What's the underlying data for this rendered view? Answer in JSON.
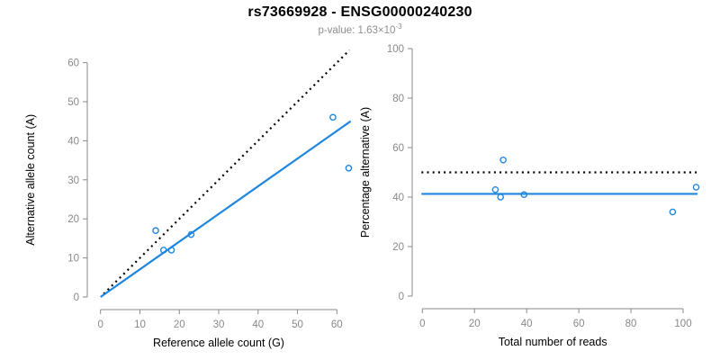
{
  "header": {
    "title": "rs73669928 - ENSG00000240230",
    "subtitle_prefix": "p-value: 1.63×10",
    "subtitle_exponent": "-3"
  },
  "colors": {
    "accent": "#1f86e0",
    "axis": "#8a8a8a",
    "reference": "#000000"
  },
  "chart_data": [
    {
      "type": "scatter",
      "panel": "left",
      "xlabel": "Reference allele count (G)",
      "ylabel": "Alternative allele count (A)",
      "xlim": [
        0,
        63.5
      ],
      "ylim": [
        0,
        63.5
      ],
      "xticks": [
        0,
        10,
        20,
        30,
        40,
        50,
        60
      ],
      "yticks": [
        0,
        10,
        20,
        30,
        40,
        50,
        60
      ],
      "points": [
        [
          14,
          17
        ],
        [
          16,
          12
        ],
        [
          18,
          12
        ],
        [
          23,
          16
        ],
        [
          59,
          46
        ],
        [
          63,
          33
        ]
      ],
      "lines": [
        {
          "name": "identity-line",
          "style": "dotted",
          "color": "#000000",
          "from": [
            0.8,
            0.8
          ],
          "to": [
            63.2,
            63.2
          ]
        },
        {
          "name": "regression-line",
          "style": "solid",
          "color": "#1f86e0",
          "from": [
            0,
            0
          ],
          "to": [
            63.5,
            45.0
          ]
        }
      ],
      "grid": false,
      "legend": null
    },
    {
      "type": "scatter",
      "panel": "right",
      "xlabel": "Total number of reads",
      "ylabel": "Percentage alternative (A)",
      "xlim": [
        0,
        105.5
      ],
      "ylim": [
        0,
        100
      ],
      "xticks": [
        0,
        20,
        40,
        60,
        80,
        100
      ],
      "yticks": [
        0,
        20,
        40,
        60,
        80,
        100
      ],
      "points": [
        [
          31,
          55
        ],
        [
          28,
          43
        ],
        [
          30,
          40
        ],
        [
          39,
          41
        ],
        [
          96,
          34
        ],
        [
          105,
          44
        ]
      ],
      "lines": [
        {
          "name": "expected-percentage-line",
          "style": "dotted",
          "color": "#000000",
          "y": 50
        },
        {
          "name": "mean-percentage-line",
          "style": "solid",
          "color": "#1f86e0",
          "y": 41.3
        }
      ],
      "grid": false,
      "legend": null
    }
  ]
}
